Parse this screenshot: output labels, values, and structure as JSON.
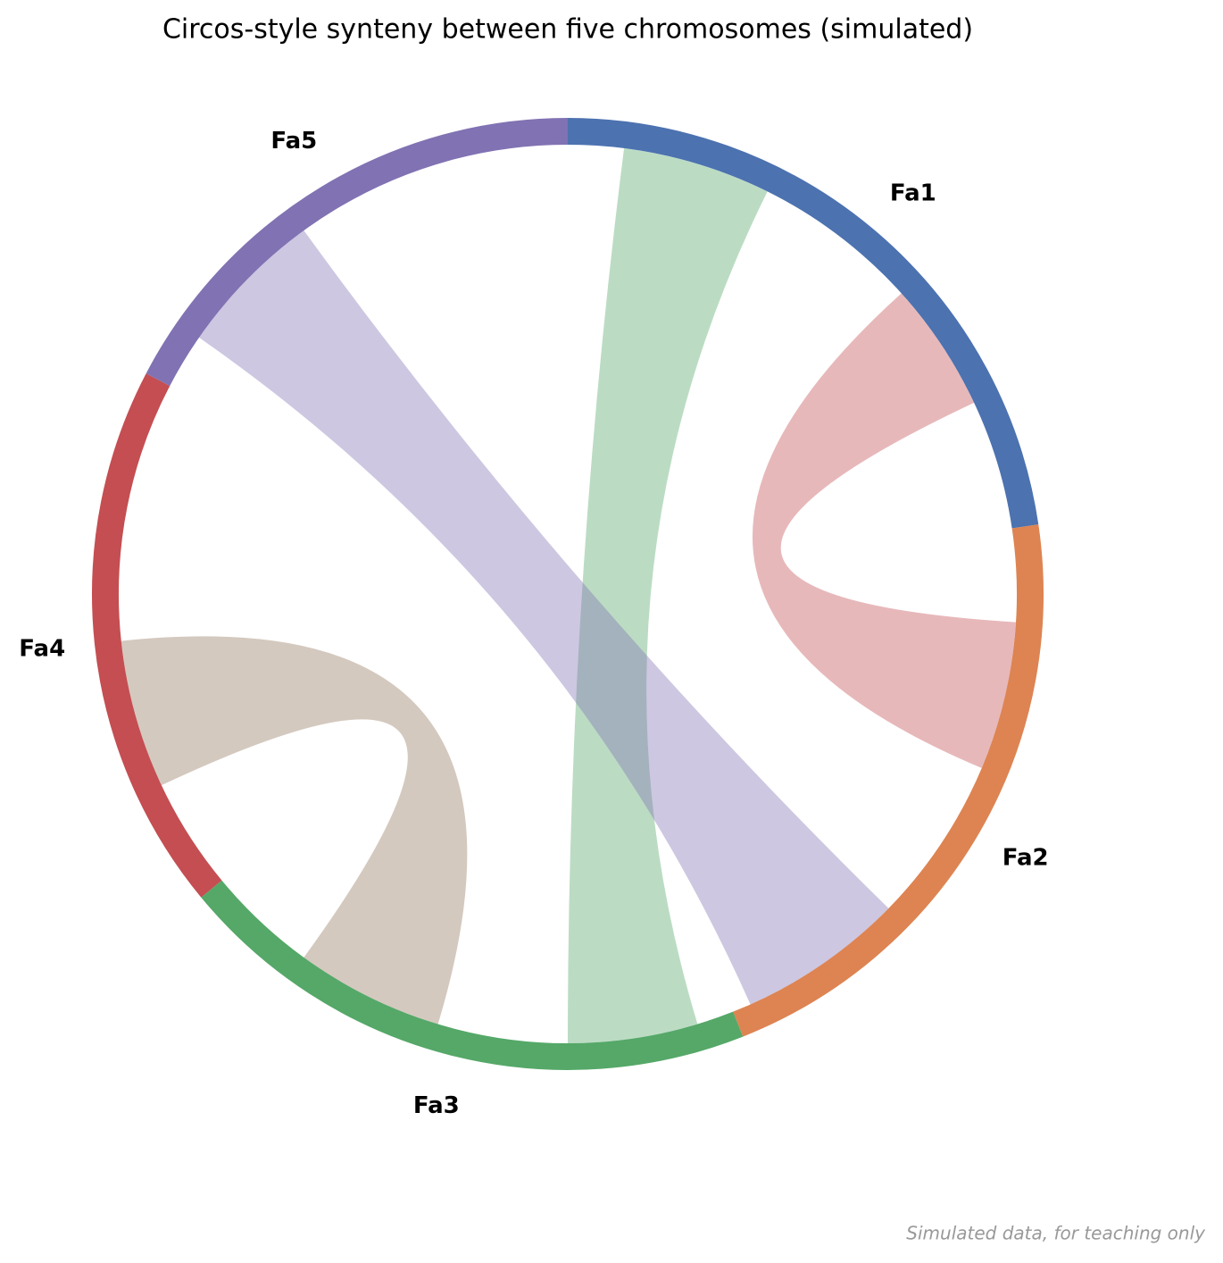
{
  "chart_data": {
    "type": "circos",
    "title": "Circos-style synteny between five chromosomes (simulated)",
    "note": "Simulated data, for teaching only",
    "chromosomes": [
      {
        "name": "Fa1",
        "length": 34,
        "color": "#4c72b0"
      },
      {
        "name": "Fa2",
        "length": 32,
        "color": "#dd8452"
      },
      {
        "name": "Fa3",
        "length": 30,
        "color": "#55a868"
      },
      {
        "name": "Fa4",
        "length": 28,
        "color": "#c44e52"
      },
      {
        "name": "Fa5",
        "length": 26,
        "color": "#8172b3"
      }
    ],
    "links": [
      {
        "source": "Fa1",
        "source_start": 3,
        "source_end": 11,
        "target": "Fa3",
        "target_start": 2,
        "target_end": 9,
        "color": "#55a868"
      },
      {
        "source": "Fa1",
        "source_start": 20,
        "source_end": 27,
        "target": "Fa2",
        "target_start": 5,
        "target_end": 13,
        "color": "#c44e52"
      },
      {
        "source": "Fa5",
        "source_start": 3,
        "source_end": 11,
        "target": "Fa2",
        "target_start": 22,
        "target_end": 31,
        "color": "#8172b3"
      },
      {
        "source": "Fa4",
        "source_start": 6,
        "source_end": 14,
        "target": "Fa3",
        "target_start": 16,
        "target_end": 24,
        "color": "#937860"
      }
    ],
    "link_opacity": 0.4
  }
}
